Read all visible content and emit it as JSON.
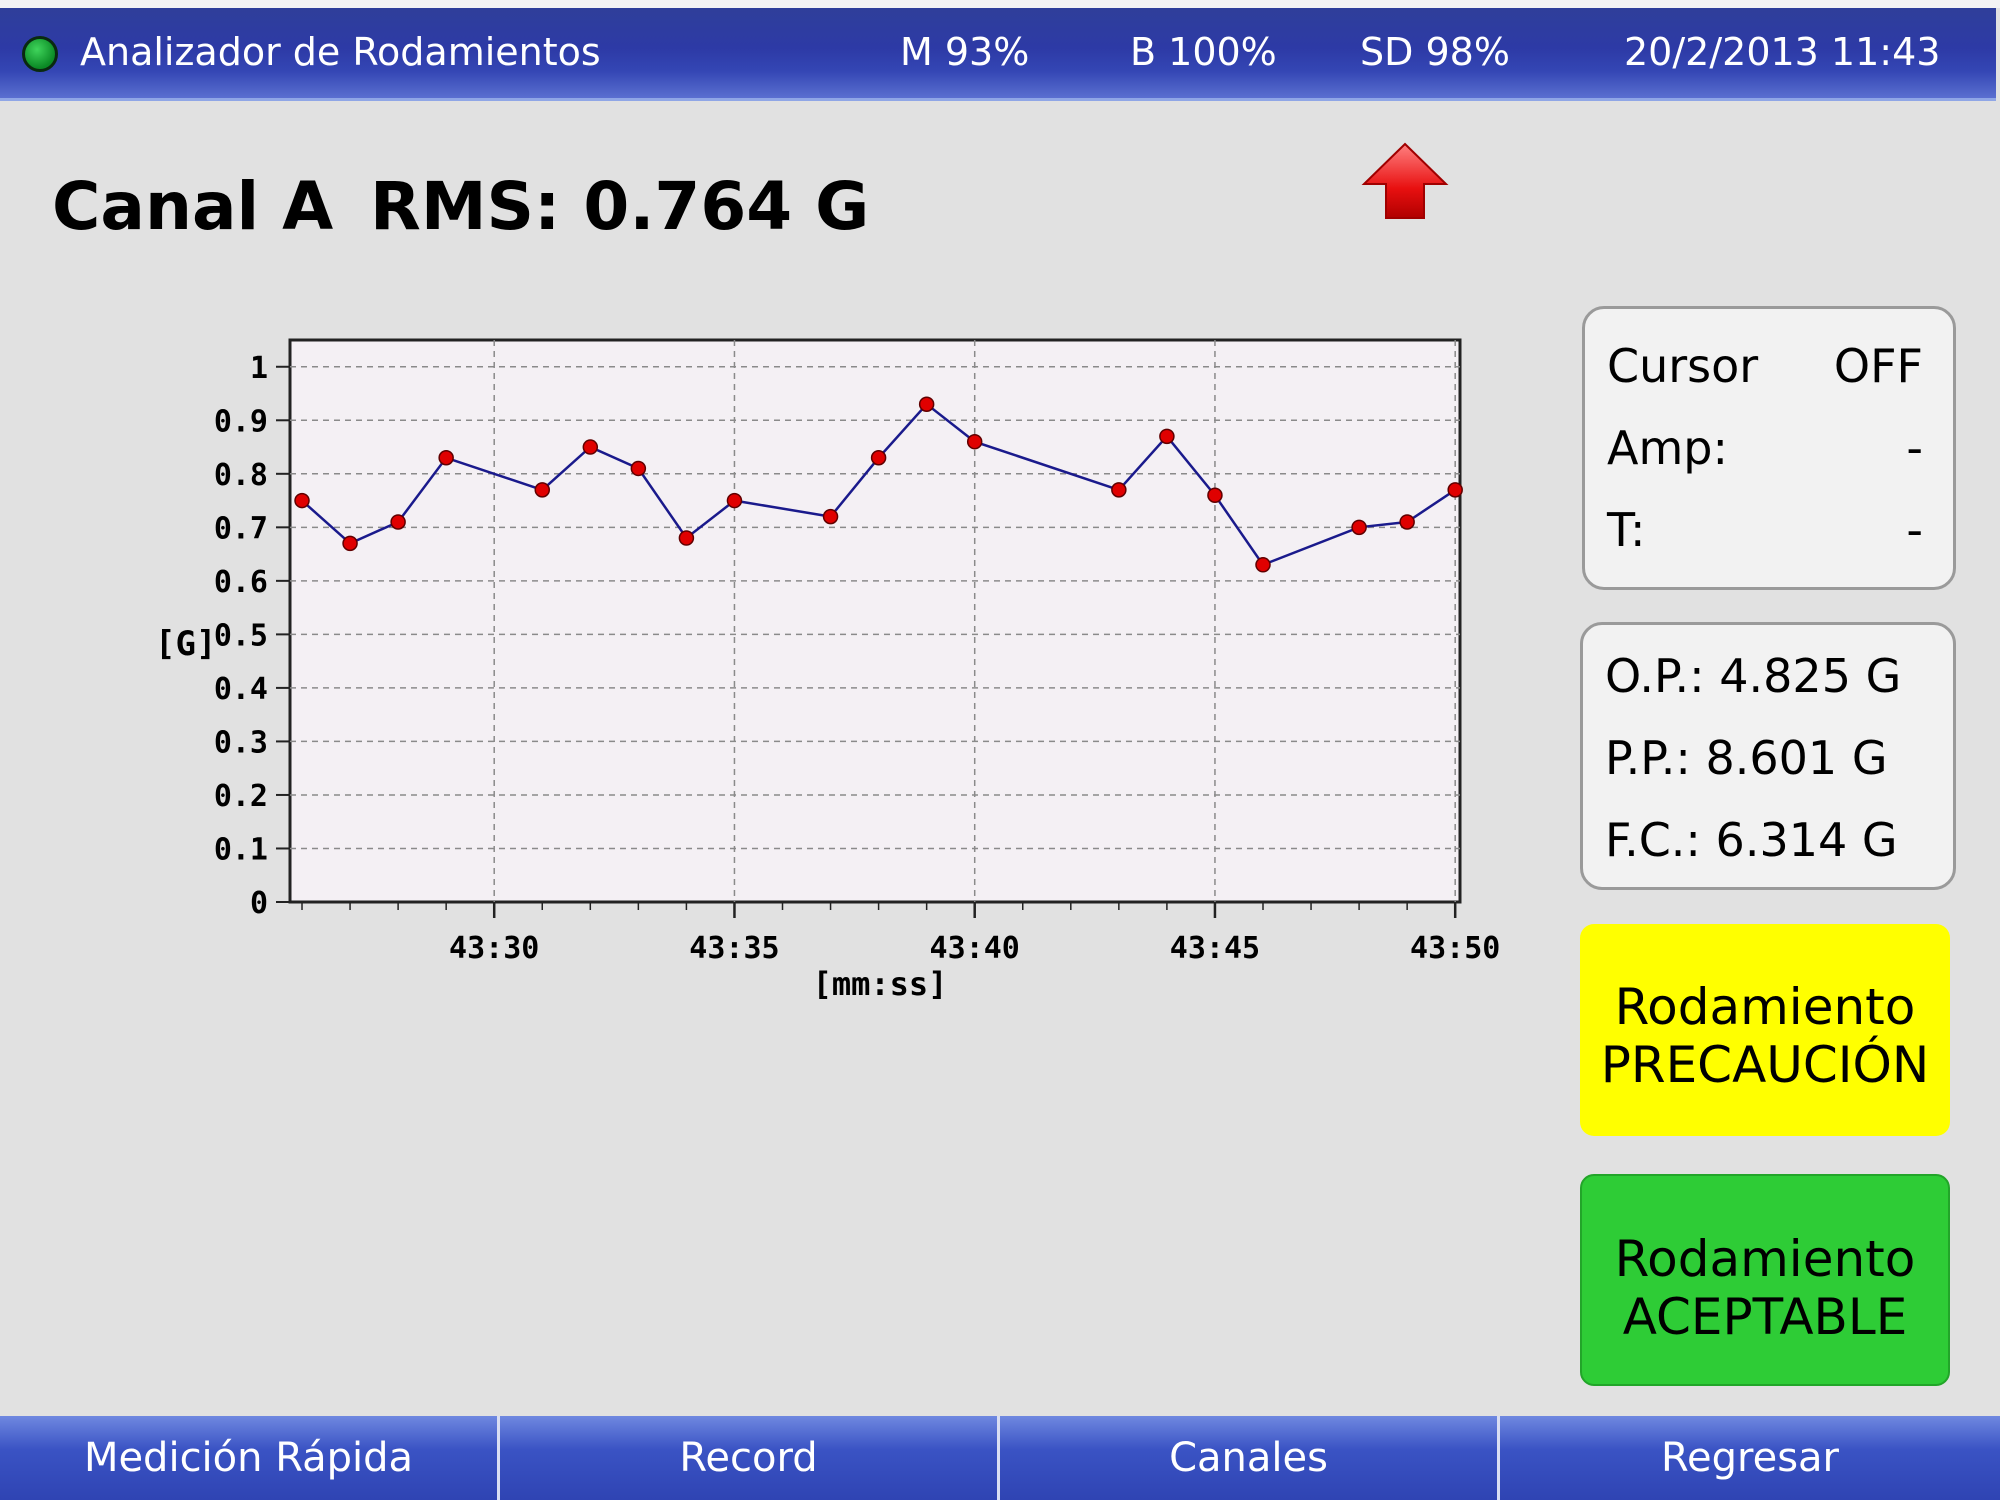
{
  "topbar": {
    "app_title": "Analizador de Rodamientos",
    "memory": "M 93%",
    "battery": "B 100%",
    "sd": "SD 98%",
    "datetime": "20/2/2013 11:43",
    "status_icon": "status-led-icon",
    "status_color": "#1aa53a"
  },
  "heading": {
    "channel": "Canal A",
    "rms": "RMS: 0.764 G",
    "trend_icon": "up-arrow-icon"
  },
  "cursor_panel": {
    "cursor_label": "Cursor",
    "cursor_value": "OFF",
    "amp_label": "Amp:",
    "amp_value": "-",
    "t_label": "T:",
    "t_value": "-"
  },
  "peak_panel": {
    "op": "O.P.: 4.825 G",
    "pp": "P.P.: 8.601 G",
    "fc": "F.C.: 6.314 G"
  },
  "status_buttons": {
    "warning_line1": "Rodamiento",
    "warning_line2": "PRECAUCIÓN",
    "warning_color": "#ffff00",
    "ok_line1": "Rodamiento",
    "ok_line2": "ACEPTABLE",
    "ok_color": "#2ecc36"
  },
  "bottombar": {
    "quick": "Medición Rápida",
    "record": "Record",
    "channels": "Canales",
    "back": "Regresar"
  },
  "chart_data": {
    "type": "line",
    "xlabel": "[mm:ss]",
    "ylabel": "[G]",
    "ylim": [
      0,
      1.0
    ],
    "yticks": [
      "0",
      "0.1",
      "0.2",
      "0.3",
      "0.4",
      "0.5",
      "0.6",
      "0.7",
      "0.8",
      "0.9",
      "1"
    ],
    "xticks": [
      {
        "t": 30,
        "label": "43:30"
      },
      {
        "t": 35,
        "label": "43:35"
      },
      {
        "t": 40,
        "label": "43:40"
      },
      {
        "t": 45,
        "label": "43:45"
      },
      {
        "t": 50,
        "label": "43:50"
      }
    ],
    "xlim_seconds": [
      25.75,
      50.1
    ],
    "grid": true,
    "line_color": "#1a1a8c",
    "marker_color": "#e00000",
    "points": [
      {
        "t": 26,
        "v": 0.75
      },
      {
        "t": 27,
        "v": 0.67
      },
      {
        "t": 28,
        "v": 0.71
      },
      {
        "t": 29,
        "v": 0.83
      },
      {
        "t": 31,
        "v": 0.77
      },
      {
        "t": 32,
        "v": 0.85
      },
      {
        "t": 33,
        "v": 0.81
      },
      {
        "t": 34,
        "v": 0.68
      },
      {
        "t": 35,
        "v": 0.75
      },
      {
        "t": 37,
        "v": 0.72
      },
      {
        "t": 38,
        "v": 0.83
      },
      {
        "t": 39,
        "v": 0.93
      },
      {
        "t": 40,
        "v": 0.86
      },
      {
        "t": 43,
        "v": 0.77
      },
      {
        "t": 44,
        "v": 0.87
      },
      {
        "t": 45,
        "v": 0.76
      },
      {
        "t": 46,
        "v": 0.63
      },
      {
        "t": 48,
        "v": 0.7
      },
      {
        "t": 49,
        "v": 0.71
      },
      {
        "t": 50,
        "v": 0.77
      }
    ]
  }
}
